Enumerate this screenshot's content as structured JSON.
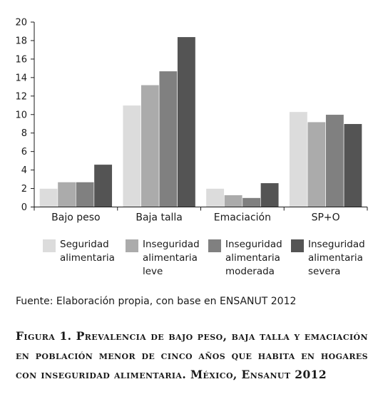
{
  "source_note": "Fuente: Elaboración propia, con base en ENSANUT 2012",
  "caption": "Figura 1. Prevalencia de bajo peso, baja talla y emaciación en población menor de cinco años que habita en hogares con inseguridad alimentaria. México, Ensanut 2012",
  "legend_items": [
    {
      "text": "Seguridad alimentaria",
      "color": "#dcdcdc"
    },
    {
      "text": "Inseguridad alimentaria leve",
      "color": "#ababab"
    },
    {
      "text": "Inseguridad alimentaria moderada",
      "color": "#808080"
    },
    {
      "text": "Inseguridad alimentaria severa",
      "color": "#545454"
    }
  ],
  "chart_data": {
    "type": "bar",
    "title": "",
    "xlabel": "",
    "ylabel": "",
    "ylim": [
      0,
      20
    ],
    "yticks": [
      0,
      2,
      4,
      6,
      8,
      10,
      12,
      14,
      16,
      18,
      20
    ],
    "grid": false,
    "legend_position": "bottom",
    "categories": [
      "Bajo peso",
      "Baja talla",
      "Emaciación",
      "SP+O"
    ],
    "series": [
      {
        "name": "Seguridad alimentaria",
        "color": "#dcdcdc",
        "values": [
          2.0,
          11.0,
          2.0,
          10.3
        ]
      },
      {
        "name": "Inseguridad alimentaria leve",
        "color": "#ababab",
        "values": [
          2.7,
          13.2,
          1.3,
          9.2
        ]
      },
      {
        "name": "Inseguridad alimentaria moderada",
        "color": "#808080",
        "values": [
          2.7,
          14.7,
          1.0,
          10.0
        ]
      },
      {
        "name": "Inseguridad alimentaria severa",
        "color": "#545454",
        "values": [
          4.6,
          18.4,
          2.6,
          9.0
        ]
      }
    ]
  }
}
